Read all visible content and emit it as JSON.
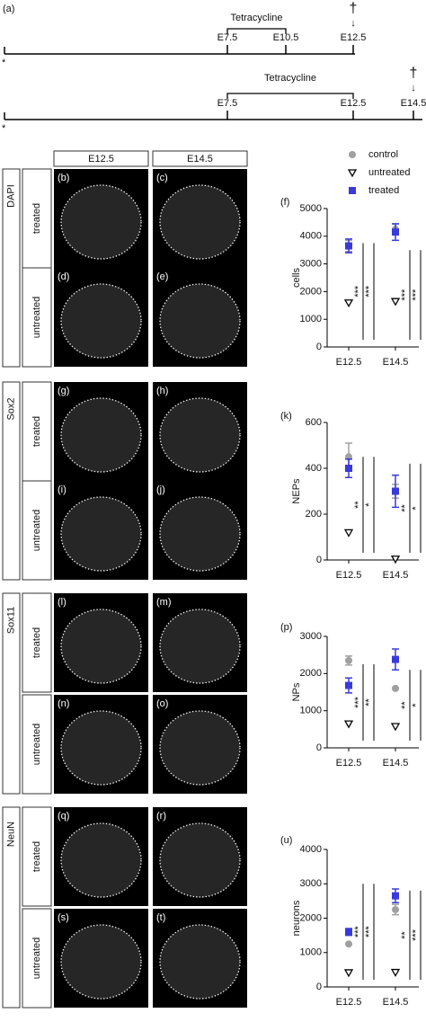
{
  "timeline": {
    "label": "(a)",
    "treatment": "Tetracycline",
    "dagger": "†",
    "arrow": "↓",
    "star": "*",
    "rows": [
      {
        "ticks": [
          "E7.5",
          "E10.5",
          "E12.5"
        ]
      },
      {
        "ticks": [
          "E7.5",
          "E12.5",
          "E14.5"
        ]
      }
    ]
  },
  "images": {
    "columns": [
      "E12.5",
      "E14.5"
    ],
    "groups": [
      {
        "marker": "DAPI",
        "rows": [
          {
            "condition": "treated",
            "panels": [
              "(b)",
              "(c)"
            ]
          },
          {
            "condition": "untreated",
            "panels": [
              "(d)",
              "(e)"
            ]
          }
        ]
      },
      {
        "marker": "Sox2",
        "rows": [
          {
            "condition": "treated",
            "panels": [
              "(g)",
              "(h)"
            ]
          },
          {
            "condition": "untreated",
            "panels": [
              "(i)",
              "(j)"
            ]
          }
        ]
      },
      {
        "marker": "Sox11",
        "rows": [
          {
            "condition": "treated",
            "panels": [
              "(l)",
              "(m)"
            ]
          },
          {
            "condition": "untreated",
            "panels": [
              "(n)",
              "(o)"
            ]
          }
        ]
      },
      {
        "marker": "NeuN",
        "rows": [
          {
            "condition": "treated",
            "panels": [
              "(q)",
              "(r)"
            ]
          },
          {
            "condition": "untreated",
            "panels": [
              "(s)",
              "(t)"
            ]
          }
        ]
      }
    ]
  },
  "chart_data": [
    {
      "type": "scatter",
      "label": "(f)",
      "ylabel": "cells",
      "categories": [
        "E12.5",
        "E14.5"
      ],
      "ylim": [
        0,
        5000
      ],
      "yticks": [
        0,
        1000,
        2000,
        3000,
        4000,
        5000
      ],
      "series": [
        {
          "name": "control",
          "color": "#a0a0a0",
          "marker": "circle",
          "values": [
            3650,
            4250
          ],
          "errors": [
            200,
            200
          ]
        },
        {
          "name": "untreated",
          "color": "#000000",
          "marker": "triangle-open",
          "values": [
            1600,
            1650
          ]
        },
        {
          "name": "treated",
          "color": "#3a3ad8",
          "marker": "square",
          "values": [
            3650,
            4150
          ],
          "errors": [
            250,
            300
          ]
        }
      ],
      "annotations": [
        "***",
        "***",
        "***",
        "***"
      ]
    },
    {
      "type": "scatter",
      "label": "(k)",
      "ylabel": "NEPs",
      "categories": [
        "E12.5",
        "E14.5"
      ],
      "ylim": [
        0,
        600
      ],
      "yticks": [
        0,
        200,
        400,
        600
      ],
      "series": [
        {
          "color": "#a0a0a0",
          "marker": "circle",
          "values": [
            450,
            300
          ],
          "errors": [
            60,
            30
          ]
        },
        {
          "color": "#000000",
          "marker": "triangle-open",
          "values": [
            120,
            5
          ]
        },
        {
          "color": "#3a3ad8",
          "marker": "square",
          "values": [
            400,
            300
          ],
          "errors": [
            40,
            70
          ]
        }
      ],
      "annotations": [
        "**",
        "*",
        "**",
        "*"
      ]
    },
    {
      "type": "scatter",
      "label": "(p)",
      "ylabel": "NPs",
      "categories": [
        "E12.5",
        "E14.5"
      ],
      "ylim": [
        0,
        3000
      ],
      "yticks": [
        0,
        1000,
        2000,
        3000
      ],
      "series": [
        {
          "color": "#a0a0a0",
          "marker": "circle",
          "values": [
            2350,
            1600
          ],
          "errors": [
            120,
            0
          ]
        },
        {
          "color": "#000000",
          "marker": "triangle-open",
          "values": [
            650,
            580
          ]
        },
        {
          "color": "#3a3ad8",
          "marker": "square",
          "values": [
            1680,
            2380
          ],
          "errors": [
            200,
            280
          ]
        }
      ],
      "annotations": [
        "***",
        "**",
        "**",
        "*"
      ]
    },
    {
      "type": "scatter",
      "label": "(u)",
      "ylabel": "neurons",
      "categories": [
        "E12.5",
        "E14.5"
      ],
      "ylim": [
        0,
        4000
      ],
      "yticks": [
        0,
        1000,
        2000,
        3000,
        4000
      ],
      "series": [
        {
          "color": "#a0a0a0",
          "marker": "circle",
          "values": [
            1250,
            2250
          ],
          "errors": [
            0,
            150
          ]
        },
        {
          "color": "#000000",
          "marker": "triangle-open",
          "values": [
            420,
            430
          ]
        },
        {
          "color": "#3a3ad8",
          "marker": "square",
          "values": [
            1600,
            2650
          ],
          "errors": [
            100,
            200
          ]
        }
      ],
      "annotations": [
        "***",
        "***",
        "**",
        "***"
      ]
    }
  ]
}
